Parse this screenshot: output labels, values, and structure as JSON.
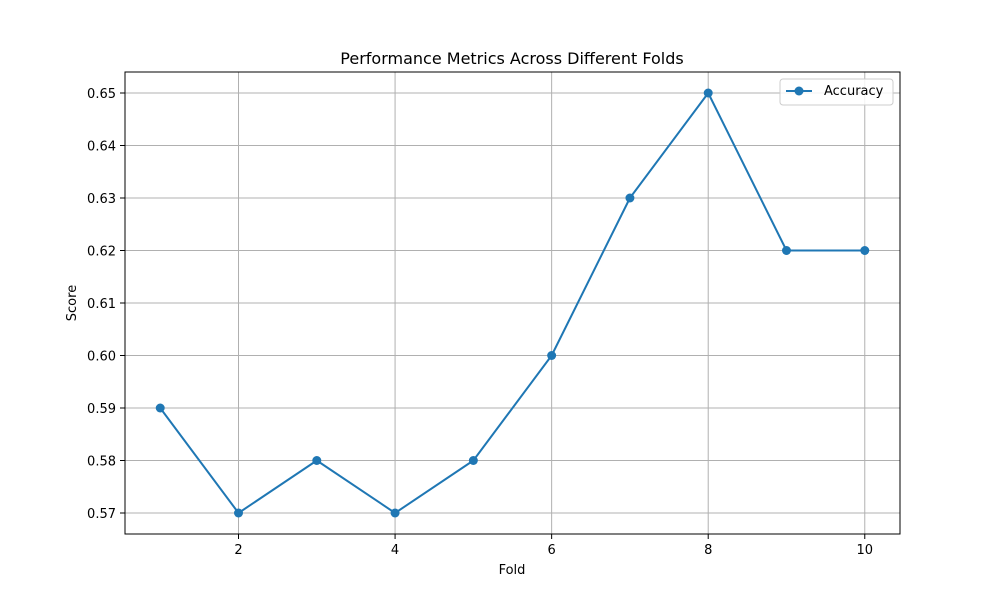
{
  "chart_data": {
    "type": "line",
    "title": "Performance Metrics Across Different Folds",
    "xlabel": "Fold",
    "ylabel": "Score",
    "x": [
      1,
      2,
      3,
      4,
      5,
      6,
      7,
      8,
      9,
      10
    ],
    "series": [
      {
        "name": "Accuracy",
        "values": [
          0.59,
          0.57,
          0.58,
          0.57,
          0.58,
          0.6,
          0.63,
          0.65,
          0.62,
          0.62
        ],
        "color": "#1f77b4",
        "marker": "circle"
      }
    ],
    "xlim": [
      0.55,
      10.45
    ],
    "ylim": [
      0.566,
      0.654
    ],
    "xticks": [
      2,
      4,
      6,
      8,
      10
    ],
    "xtick_labels": [
      "2",
      "4",
      "6",
      "8",
      "10"
    ],
    "yticks": [
      0.57,
      0.58,
      0.59,
      0.6,
      0.61,
      0.62,
      0.63,
      0.64,
      0.65
    ],
    "ytick_labels": [
      "0.57",
      "0.58",
      "0.59",
      "0.60",
      "0.61",
      "0.62",
      "0.63",
      "0.64",
      "0.65"
    ],
    "grid": true,
    "legend_position": "top-right"
  }
}
